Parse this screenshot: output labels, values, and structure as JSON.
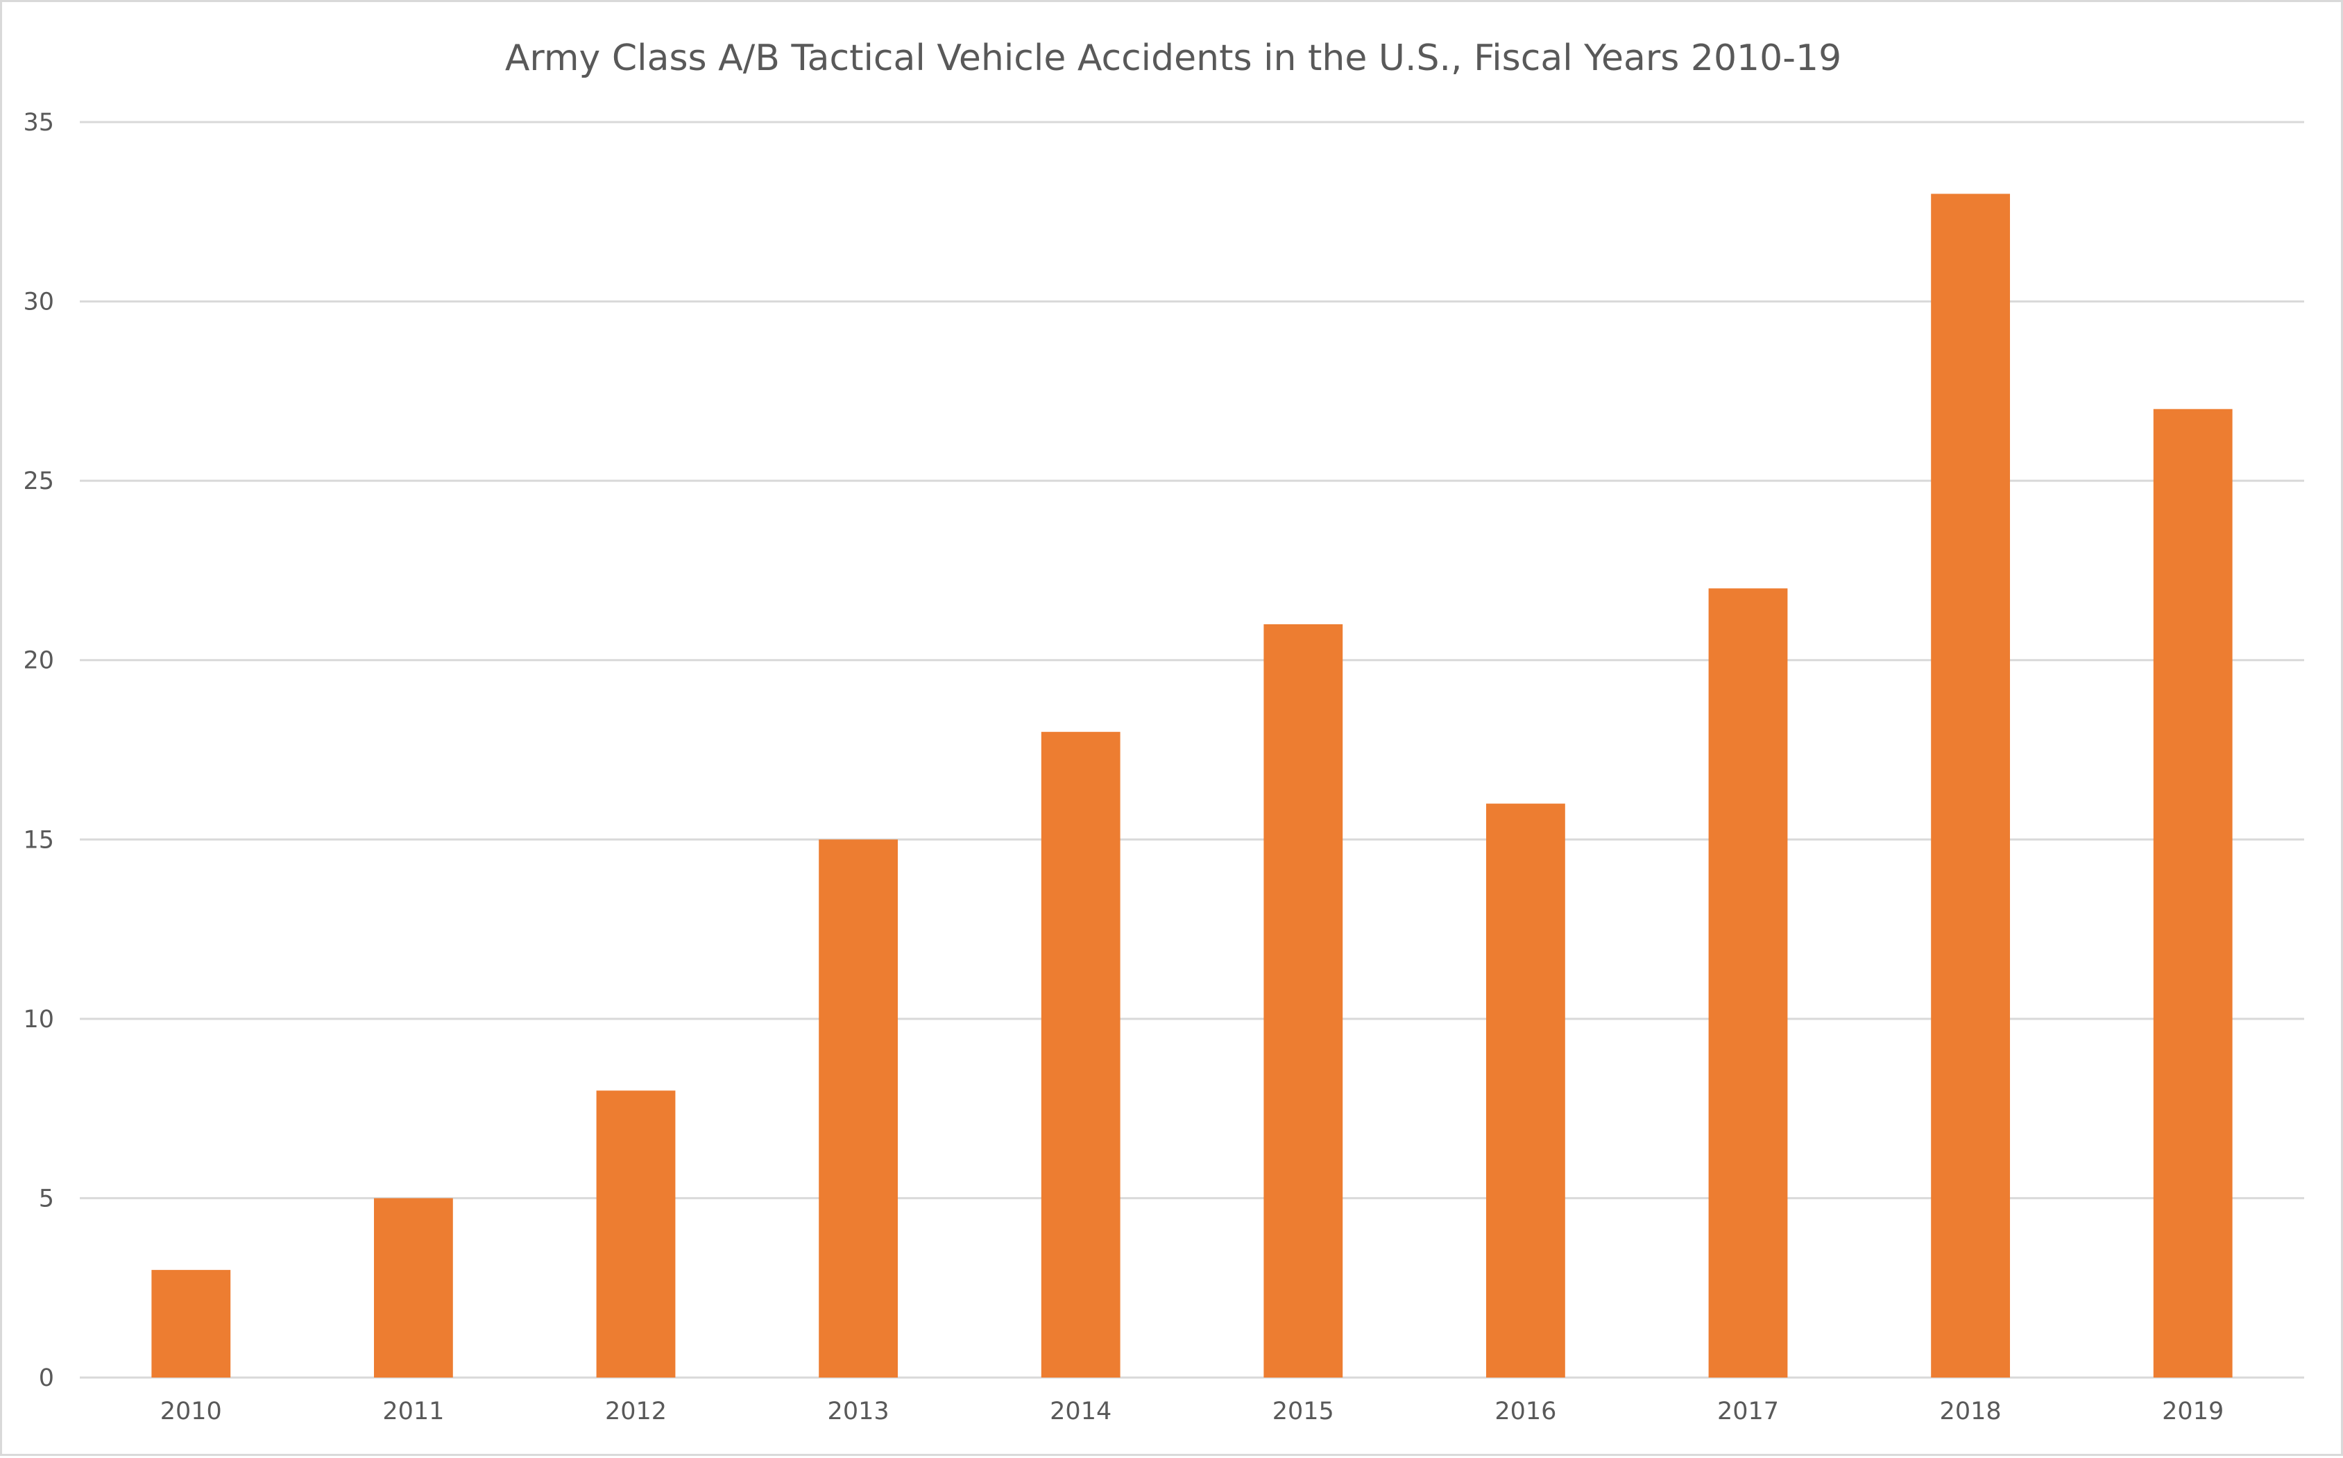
{
  "colors": {
    "bar": "#ED7D31",
    "gridline": "#D9D9D9",
    "text": "#595959",
    "background": "#FFFFFF"
  },
  "chart_data": {
    "type": "bar",
    "title": "Army Class A/B Tactical Vehicle Accidents in the U.S., Fiscal Years 2010-19",
    "xlabel": "",
    "ylabel": "",
    "categories": [
      "2010",
      "2011",
      "2012",
      "2013",
      "2014",
      "2015",
      "2016",
      "2017",
      "2018",
      "2019"
    ],
    "values": [
      3,
      5,
      8,
      15,
      18,
      21,
      16,
      22,
      33,
      27
    ],
    "ylim": [
      0,
      35
    ],
    "yticks": [
      0,
      5,
      10,
      15,
      20,
      25,
      30,
      35
    ],
    "grid": true,
    "legend": "none"
  }
}
